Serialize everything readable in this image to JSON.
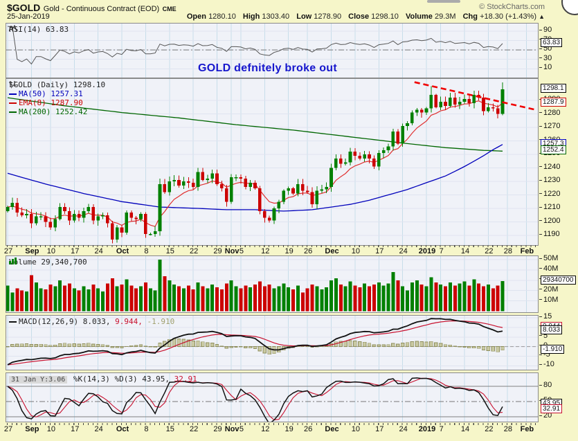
{
  "header": {
    "symbol": "$GOLD",
    "name": "Gold - Continuous Contract (EOD)",
    "exchange": "CME",
    "credit": "© StockCharts.com",
    "date": "25-Jan-2019",
    "quote": {
      "open_label": "Open",
      "open": "1280.10",
      "high_label": "High",
      "high": "1303.40",
      "low_label": "Low",
      "low": "1278.90",
      "close_label": "Close",
      "close": "1298.10",
      "volume_label": "Volume",
      "volume": "29.3M",
      "chg_label": "Chg",
      "chg": "+18.30 (+1.43%)",
      "chg_arrow": "▲"
    }
  },
  "annotation": {
    "text": "GOLD defnitely broke out",
    "color": "#1717CD"
  },
  "panels": {
    "rsi": {
      "label": "RSI(14) 63.83",
      "value": 63.83,
      "axis": [
        90,
        70,
        50,
        30,
        10
      ],
      "callouts": [
        {
          "text": "63.83",
          "value": 63.83,
          "color": "#000000"
        }
      ]
    },
    "main": {
      "title": "$GOLD (Daily) 1298.10",
      "legend": [
        {
          "text": "MA(50) 1257.31",
          "color": "#0000BB"
        },
        {
          "text": "EMA(8) 1287.90",
          "color": "#CC0000"
        },
        {
          "text": "MA(200) 1252.42",
          "color": "#006600"
        }
      ],
      "axis": [
        1290,
        1280,
        1270,
        1260,
        1250,
        1240,
        1230,
        1220,
        1210,
        1200,
        1190
      ],
      "callouts": [
        {
          "text": "1298.1",
          "value": 1298.1,
          "color": "#000000"
        },
        {
          "text": "1287.9",
          "value": 1287.9,
          "color": "#CC0000"
        },
        {
          "text": "1257.3",
          "value": 1257.3,
          "color": "#0000BB"
        },
        {
          "text": "1252.4",
          "value": 1252.4,
          "color": "#006600"
        }
      ]
    },
    "volume": {
      "label": "Volume 29,340,700",
      "value": 29340700,
      "axis_labels": [
        "50M",
        "40M",
        "30M",
        "20M",
        "10M"
      ],
      "axis_values": [
        50,
        40,
        30,
        20,
        10
      ],
      "callouts": [
        {
          "text": "29340700",
          "value": 29.34,
          "color": "#000000"
        }
      ]
    },
    "macd": {
      "label": "MACD(12,26,9)",
      "v1": "8.033,",
      "v2": "9.944,",
      "v3": "-1.910",
      "axis": [
        15,
        10,
        5,
        0,
        -5,
        -10
      ],
      "callouts": [
        {
          "text": "9.944",
          "value": 9.944,
          "color": "#C8102E"
        },
        {
          "text": "8.033",
          "value": 8.033,
          "color": "#000000"
        },
        {
          "text": "-1.910",
          "value": -1.91,
          "color": "#000000"
        }
      ]
    },
    "stoch": {
      "tooltip": "31 Jan Y:3.06",
      "label": "%K(14,3) %D(3)",
      "v1": "43.95,",
      "v2": "32.91",
      "axis": [
        80,
        50,
        20
      ],
      "callouts": [
        {
          "text": "43.95",
          "value": 43.95,
          "color": "#000000"
        },
        {
          "text": "32.91",
          "value": 32.91,
          "color": "#C8102E"
        }
      ]
    }
  },
  "xaxis": {
    "ticks": [
      {
        "i": 0,
        "label": "27"
      },
      {
        "i": 5,
        "label": "Sep",
        "bold": true
      },
      {
        "i": 9,
        "label": "10"
      },
      {
        "i": 14,
        "label": "17"
      },
      {
        "i": 19,
        "label": "24"
      },
      {
        "i": 24,
        "label": "Oct",
        "bold": true
      },
      {
        "i": 29,
        "label": "8"
      },
      {
        "i": 34,
        "label": "15"
      },
      {
        "i": 39,
        "label": "22"
      },
      {
        "i": 44,
        "label": "29"
      },
      {
        "i": 47,
        "label": "Nov",
        "bold": true
      },
      {
        "i": 49,
        "label": "5"
      },
      {
        "i": 54,
        "label": "12"
      },
      {
        "i": 59,
        "label": "19"
      },
      {
        "i": 63,
        "label": "26"
      },
      {
        "i": 68,
        "label": "Dec",
        "bold": true
      },
      {
        "i": 73,
        "label": "10"
      },
      {
        "i": 78,
        "label": "17"
      },
      {
        "i": 83,
        "label": "24"
      },
      {
        "i": 88,
        "label": "2019",
        "bold": true
      },
      {
        "i": 91,
        "label": "7"
      },
      {
        "i": 96,
        "label": "14"
      },
      {
        "i": 101,
        "label": "22"
      },
      {
        "i": 105,
        "label": "28"
      },
      {
        "i": 109,
        "label": "Feb",
        "bold": true
      }
    ]
  },
  "chart_data": {
    "type": "candlestick",
    "title": "$GOLD Gold - Continuous Contract (EOD) CME, 27-Aug-2018 to 25-Jan-2019",
    "ylim": [
      1181,
      1305
    ],
    "dates": [
      "08-27",
      "08-28",
      "08-29",
      "08-30",
      "08-31",
      "09-04",
      "09-05",
      "09-06",
      "09-07",
      "09-10",
      "09-11",
      "09-12",
      "09-13",
      "09-14",
      "09-17",
      "09-18",
      "09-19",
      "09-20",
      "09-21",
      "09-24",
      "09-25",
      "09-26",
      "09-27",
      "09-28",
      "10-01",
      "10-02",
      "10-03",
      "10-04",
      "10-05",
      "10-08",
      "10-09",
      "10-10",
      "10-11",
      "10-12",
      "10-15",
      "10-16",
      "10-17",
      "10-18",
      "10-19",
      "10-22",
      "10-23",
      "10-24",
      "10-25",
      "10-26",
      "10-29",
      "10-30",
      "10-31",
      "11-01",
      "11-02",
      "11-05",
      "11-06",
      "11-07",
      "11-08",
      "11-09",
      "11-12",
      "11-13",
      "11-14",
      "11-15",
      "11-16",
      "11-19",
      "11-20",
      "11-21",
      "11-23",
      "11-26",
      "11-27",
      "11-28",
      "11-29",
      "11-30",
      "12-03",
      "12-04",
      "12-05",
      "12-06",
      "12-07",
      "12-10",
      "12-11",
      "12-12",
      "12-13",
      "12-14",
      "12-17",
      "12-18",
      "12-19",
      "12-20",
      "12-21",
      "12-24",
      "12-26",
      "12-27",
      "12-28",
      "12-31",
      "01-02",
      "01-03",
      "01-04",
      "01-07",
      "01-08",
      "01-09",
      "01-10",
      "01-11",
      "01-14",
      "01-15",
      "01-16",
      "01-17",
      "01-18",
      "01-22",
      "01-23",
      "01-24",
      "01-25"
    ],
    "close": [
      1211,
      1214,
      1207,
      1205,
      1206,
      1199,
      1204,
      1204,
      1200,
      1196,
      1202,
      1211,
      1208,
      1201,
      1206,
      1203,
      1208,
      1211,
      1201,
      1204,
      1205,
      1199,
      1187,
      1196,
      1192,
      1207,
      1203,
      1202,
      1206,
      1191,
      1191,
      1193,
      1228,
      1222,
      1230,
      1231,
      1227,
      1230,
      1229,
      1226,
      1237,
      1231,
      1232,
      1236,
      1228,
      1225,
      1215,
      1233,
      1233,
      1232,
      1226,
      1229,
      1225,
      1208,
      1203,
      1201,
      1210,
      1215,
      1223,
      1225,
      1221,
      1228,
      1223,
      1222,
      1213,
      1223,
      1224,
      1226,
      1240,
      1247,
      1243,
      1244,
      1252,
      1249,
      1247,
      1250,
      1247,
      1241,
      1251,
      1253,
      1256,
      1267,
      1258,
      1271,
      1273,
      1281,
      1283,
      1281,
      1284,
      1294,
      1285,
      1289,
      1286,
      1292,
      1287,
      1289,
      1291,
      1288,
      1294,
      1292,
      1282,
      1285,
      1284,
      1280,
      1298.1
    ],
    "open_first": 1208,
    "high_overrides": {
      "32": 1232,
      "89": 1300.5,
      "104": 1303.4
    },
    "low_overrides": {
      "22": 1184,
      "104": 1278.9
    },
    "volume_m": [
      25,
      18,
      22,
      20,
      19,
      35,
      28,
      22,
      21,
      26,
      24,
      30,
      25,
      27,
      22,
      20,
      24,
      21,
      26,
      22,
      19,
      27,
      32,
      24,
      26,
      31,
      25,
      22,
      24,
      28,
      22,
      20,
      50,
      34,
      30,
      26,
      24,
      22,
      25,
      21,
      28,
      24,
      22,
      26,
      23,
      21,
      27,
      30,
      24,
      22,
      25,
      23,
      26,
      29,
      24,
      26,
      22,
      24,
      27,
      23,
      21,
      25,
      18,
      22,
      26,
      24,
      21,
      23,
      30,
      32,
      26,
      24,
      29,
      25,
      23,
      27,
      24,
      26,
      28,
      25,
      27,
      38,
      30,
      24,
      20,
      28,
      30,
      26,
      24,
      33,
      28,
      26,
      24,
      28,
      25,
      27,
      29,
      25,
      31,
      27,
      24,
      26,
      22,
      25,
      29.3
    ],
    "ma50_points": [
      [
        0,
        1236
      ],
      [
        8,
        1228
      ],
      [
        16,
        1221
      ],
      [
        24,
        1215
      ],
      [
        32,
        1211
      ],
      [
        40,
        1210
      ],
      [
        46,
        1209
      ],
      [
        52,
        1209
      ],
      [
        58,
        1208
      ],
      [
        64,
        1209
      ],
      [
        68,
        1211
      ],
      [
        72,
        1213
      ],
      [
        76,
        1216
      ],
      [
        80,
        1220
      ],
      [
        84,
        1224
      ],
      [
        88,
        1229
      ],
      [
        92,
        1234
      ],
      [
        96,
        1241
      ],
      [
        100,
        1249
      ],
      [
        102,
        1253.5
      ],
      [
        104,
        1257.31
      ]
    ],
    "ma200_points": [
      [
        0,
        1292
      ],
      [
        12,
        1286
      ],
      [
        24,
        1281
      ],
      [
        36,
        1277
      ],
      [
        48,
        1272
      ],
      [
        60,
        1268
      ],
      [
        72,
        1263
      ],
      [
        84,
        1258
      ],
      [
        92,
        1255
      ],
      [
        100,
        1253
      ],
      [
        104,
        1252.42
      ]
    ],
    "ema8_period": 8,
    "indicators": {
      "rsi_period": 14,
      "rsi_last": 63.83,
      "macd_params": [
        12,
        26,
        9
      ],
      "macd_last": [
        8.033,
        9.944,
        -1.91
      ],
      "stoch_params": [
        "%K(14,3)",
        "%D(3)"
      ],
      "stoch_last": [
        43.95,
        32.91
      ],
      "ma50_last": 1257.31,
      "ema8_last": 1287.9,
      "ma200_last": 1252.42,
      "volume_last": 29340700
    },
    "trendline": {
      "style": "dashed",
      "color": "#F00000",
      "from_index": 85.5,
      "from_price": 1303.5,
      "to_index": 111,
      "to_price": 1283
    },
    "colors": {
      "up": "#008000",
      "down": "#CC0000",
      "ma50": "#0000BB",
      "ema8": "#E03030",
      "ma200": "#006600",
      "macd_line": "#111111",
      "macd_signal": "#C8102E",
      "macd_hist_fill": "#C9C9A3",
      "macd_hist_stroke": "#8E8E5C",
      "rsi_line": "#555555",
      "stoch_k": "#111111",
      "stoch_d": "#C8102E"
    }
  }
}
